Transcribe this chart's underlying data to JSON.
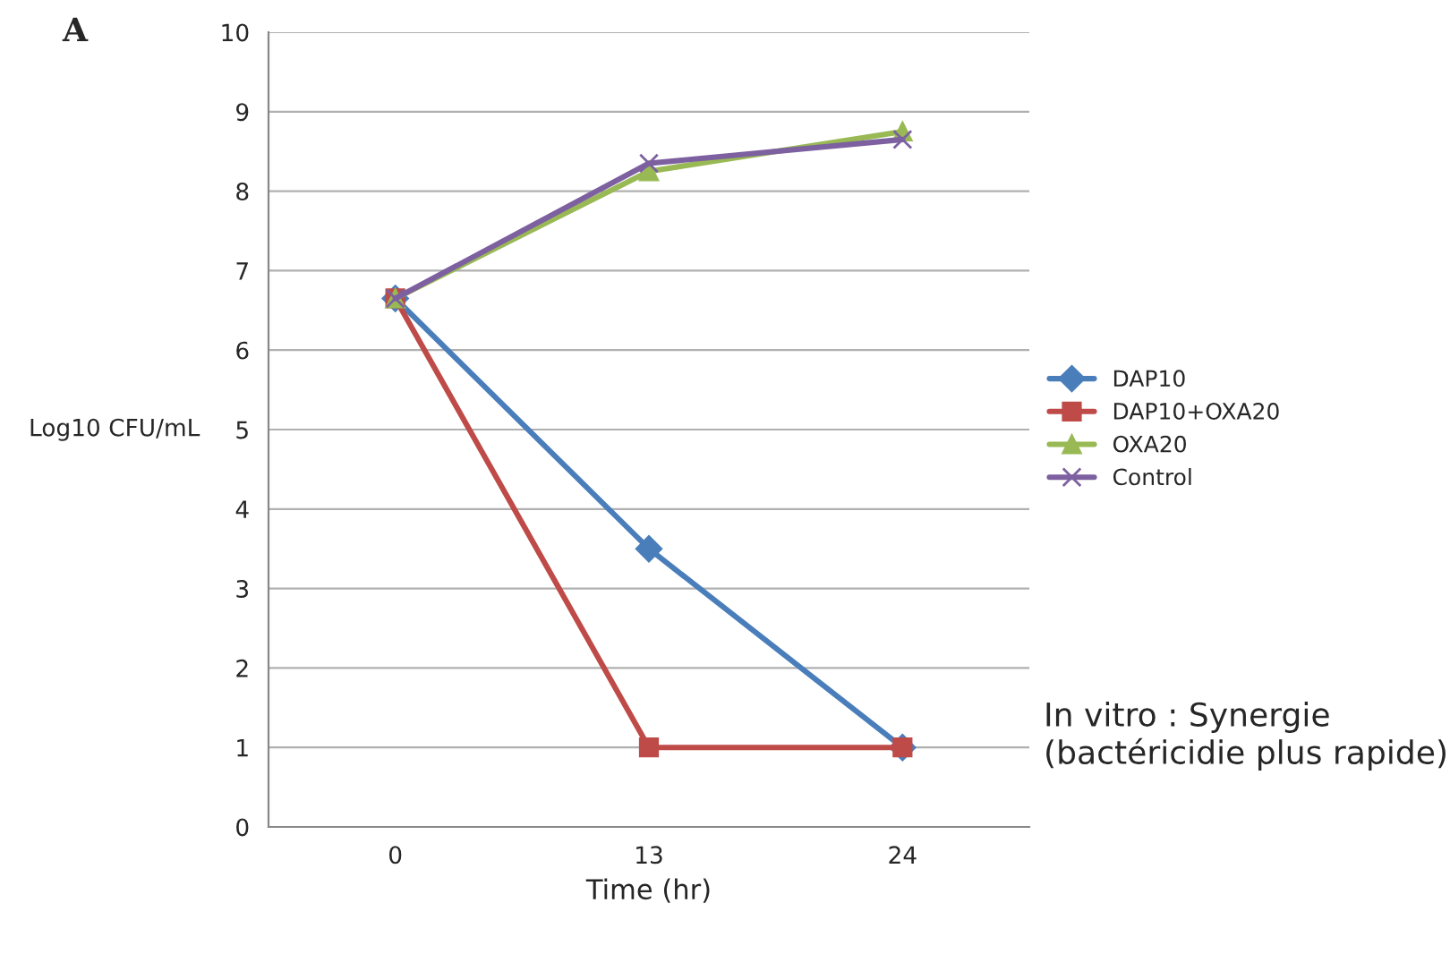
{
  "chart_data": {
    "type": "line",
    "xlabel": "Time (hr)",
    "ylabel": "Log10 CFU/mL",
    "categories": [
      "0",
      "13",
      "24"
    ],
    "series": [
      {
        "name": "DAP10",
        "color": "#4a7ebb",
        "marker": "diamond",
        "values": [
          6.65,
          3.5,
          1.0
        ]
      },
      {
        "name": "DAP10+OXA20",
        "color": "#be4b48",
        "marker": "square",
        "values": [
          6.65,
          1.0,
          1.0
        ]
      },
      {
        "name": "OXA20",
        "color": "#98b954",
        "marker": "triangle",
        "values": [
          6.65,
          8.25,
          8.75
        ]
      },
      {
        "name": "Control",
        "color": "#7d60a0",
        "marker": "cross",
        "values": [
          6.65,
          8.35,
          8.65
        ]
      }
    ],
    "ylim": [
      0,
      10
    ],
    "yticks": [
      0,
      1,
      2,
      3,
      4,
      5,
      6,
      7,
      8,
      9,
      10
    ],
    "grid": "y",
    "legend": "right",
    "annotations": [
      "A",
      "In vitro : Synergie (bactéricidie plus rapide)"
    ]
  }
}
